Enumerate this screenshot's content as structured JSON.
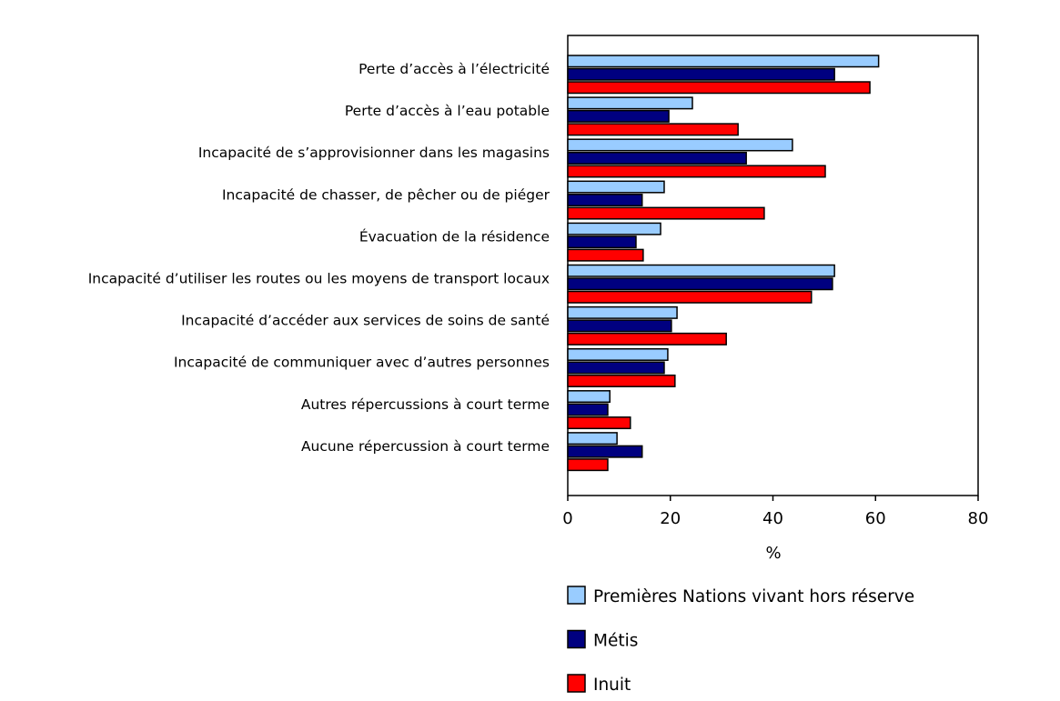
{
  "chart_data": {
    "type": "bar",
    "orientation": "horizontal",
    "categories": [
      "Perte d’accès à l’électricité",
      "Perte d’accès à l’eau potable",
      "Incapacité de s’approvisionner dans les magasins",
      "Incapacité de chasser, de pêcher ou de piéger",
      "Évacuation de la résidence",
      "Incapacité d’utiliser les routes ou les moyens de transport locaux",
      "Incapacité d’accéder aux services de soins de santé",
      "Incapacité de communiquer avec d’autres personnes",
      "Autres répercussions à court terme",
      "Aucune répercussion à court terme"
    ],
    "series": [
      {
        "name": "Premières Nations vivant hors réserve",
        "color": "#99CCFF",
        "values": [
          60.6,
          24.3,
          43.8,
          18.8,
          18.1,
          52.0,
          21.3,
          19.5,
          8.2,
          9.6
        ]
      },
      {
        "name": "Métis",
        "color": "#000080",
        "values": [
          52.0,
          19.7,
          34.8,
          14.5,
          13.3,
          51.6,
          20.2,
          18.8,
          7.8,
          14.5
        ]
      },
      {
        "name": "Inuit",
        "color": "#FF0000",
        "values": [
          58.9,
          33.2,
          50.2,
          38.3,
          14.7,
          47.5,
          30.9,
          20.9,
          12.2,
          7.8
        ]
      }
    ],
    "xlabel": "%",
    "xlim": [
      0,
      80
    ],
    "xticks": [
      "0",
      "20",
      "40",
      "60",
      "80"
    ],
    "grid": false,
    "legend_position": "bottom"
  }
}
